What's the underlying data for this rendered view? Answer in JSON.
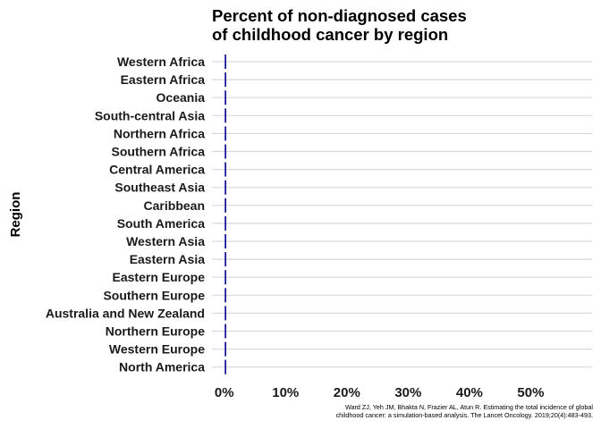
{
  "chart_data": {
    "type": "bar",
    "orientation": "horizontal",
    "title_lines": [
      "Percent of non-diagnosed cases",
      "of childhood cancer by region"
    ],
    "xlabel": "",
    "ylabel": "Region",
    "categories": [
      "Western Africa",
      "Eastern Africa",
      "Oceania",
      "South-central Asia",
      "Northern Africa",
      "Southern Africa",
      "Central America",
      "Southeast Asia",
      "Caribbean",
      "South America",
      "Western Asia",
      "Eastern Asia",
      "Eastern Europe",
      "Southern Europe",
      "Australia and New Zealand",
      "Northern Europe",
      "Western Europe",
      "North America"
    ],
    "values": [
      0,
      0,
      0,
      0,
      0,
      0,
      0,
      0,
      0,
      0,
      0,
      0,
      0,
      0,
      0,
      0,
      0,
      0
    ],
    "x_ticks": [
      0,
      10,
      20,
      30,
      40,
      50
    ],
    "x_tick_labels": [
      "0%",
      "10%",
      "20%",
      "30%",
      "40%",
      "50%"
    ],
    "xlim": [
      -2,
      60
    ],
    "grid": "horizontal-major",
    "legend": "none",
    "bar_color": "#00008B",
    "gridline_color": "#d9d9d9",
    "caption_lines": [
      "Ward ZJ, Yeh JM, Bhakta N, Frazier AL, Atun R. Estimating the total incidence of global",
      "childhood cancer: a simulation-based analysis. The Lancet Oncology. 2019;20(4):483-493."
    ]
  }
}
